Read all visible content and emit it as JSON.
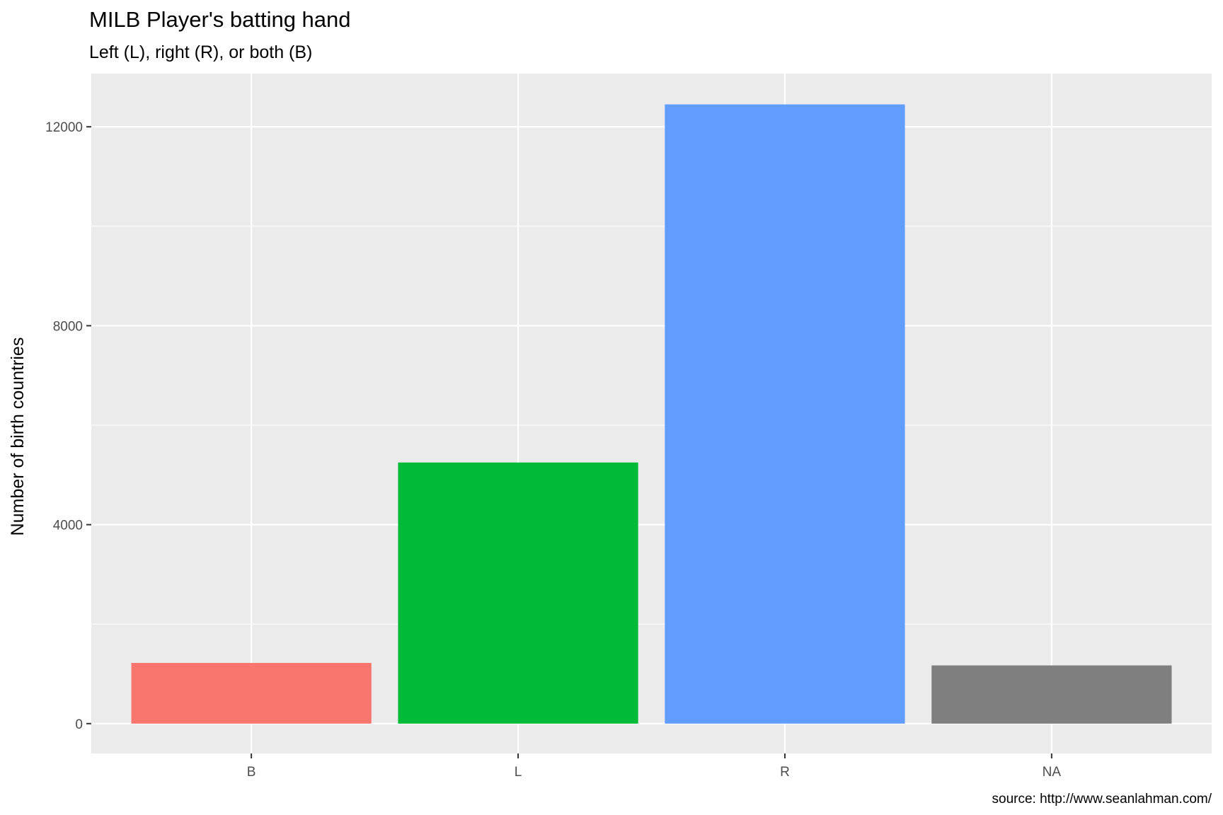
{
  "chart_data": {
    "type": "bar",
    "title": "MILB Player's batting hand",
    "subtitle": "Left (L), right (R), or both (B)",
    "xlabel": "",
    "ylabel": "Number of birth countries",
    "caption": "source: http://www.seanlahman.com/",
    "categories": [
      "B",
      "L",
      "R",
      "NA"
    ],
    "values": [
      1220,
      5250,
      12450,
      1170
    ],
    "colors": [
      "#F8766D",
      "#00BA38",
      "#619CFF",
      "#7F7F7F"
    ],
    "ylim": [
      -600,
      13070
    ],
    "yticks": [
      0,
      4000,
      8000,
      12000
    ],
    "ytick_labels": [
      "0",
      "4000",
      "8000",
      "12000"
    ],
    "panel_background": "#EBEBEB",
    "grid": true,
    "legend": "none"
  }
}
